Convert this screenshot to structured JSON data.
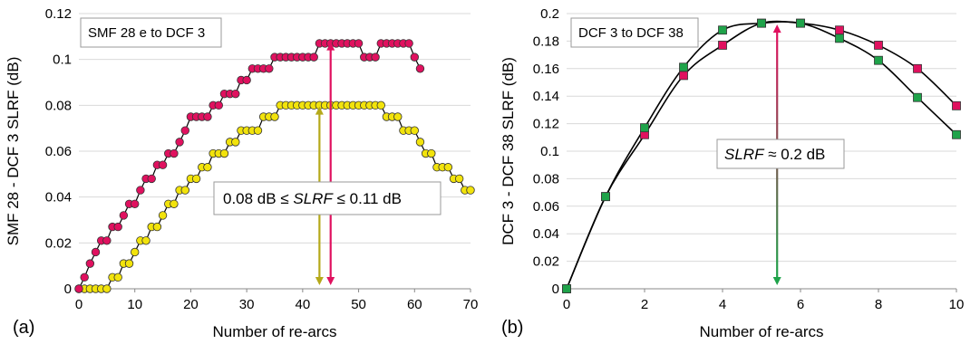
{
  "chart_data": [
    {
      "type": "scatter",
      "panel_label": "(a)",
      "title": "SMF 28 e to DCF 3",
      "xlabel": "Number of re-arcs",
      "ylabel": "SMF 28 - DCF 3 SLRF (dB)",
      "xlim": [
        0,
        70
      ],
      "ylim": [
        0,
        0.12
      ],
      "xticks": [
        "0",
        "10",
        "20",
        "30",
        "40",
        "50",
        "60",
        "70"
      ],
      "yticks": [
        "0",
        "0.02",
        "0.04",
        "0.06",
        "0.08",
        "0.1",
        "0.12"
      ],
      "grid": true,
      "annotation": {
        "text_left": "0.08 dB  ≤ ",
        "text_mid": "SLRF",
        "text_right": " ≤ 0.11 dB",
        "arrow_upper_x": 45,
        "arrow_upper_top": 0.1075,
        "arrow_lower_x": 43,
        "arrow_lower_top": 0.0795
      },
      "colors": {
        "upper": "#e0115f",
        "lower": "#f2e30c",
        "upper_arrow": "#e0115f",
        "lower_arrow": "#b5a91a"
      },
      "series": [
        {
          "name": "",
          "color": "#e0115f",
          "x": [
            0,
            1,
            2,
            3,
            4,
            5,
            6,
            7,
            8,
            9,
            10,
            11,
            12,
            13,
            14,
            15,
            16,
            17,
            18,
            19,
            20,
            21,
            22,
            23,
            24,
            25,
            26,
            27,
            28,
            29,
            30,
            31,
            32,
            33,
            34,
            35,
            36,
            37,
            38,
            39,
            40,
            41,
            42,
            43,
            44,
            45,
            46,
            47,
            48,
            49,
            50,
            51,
            52,
            53,
            54,
            55,
            56,
            57,
            58,
            59,
            60,
            61
          ],
          "y": [
            0,
            0.005,
            0.011,
            0.016,
            0.021,
            0.021,
            0.027,
            0.027,
            0.032,
            0.037,
            0.037,
            0.043,
            0.048,
            0.048,
            0.054,
            0.054,
            0.059,
            0.059,
            0.064,
            0.069,
            0.075,
            0.075,
            0.075,
            0.075,
            0.08,
            0.08,
            0.085,
            0.085,
            0.085,
            0.091,
            0.091,
            0.096,
            0.096,
            0.096,
            0.096,
            0.101,
            0.101,
            0.101,
            0.101,
            0.101,
            0.101,
            0.101,
            0.101,
            0.107,
            0.107,
            0.107,
            0.107,
            0.107,
            0.107,
            0.107,
            0.107,
            0.101,
            0.101,
            0.101,
            0.107,
            0.107,
            0.107,
            0.107,
            0.107,
            0.107,
            0.101,
            0.096
          ]
        },
        {
          "name": "",
          "color": "#f2e30c",
          "x": [
            0,
            1,
            2,
            3,
            4,
            5,
            6,
            7,
            8,
            9,
            10,
            11,
            12,
            13,
            14,
            15,
            16,
            17,
            18,
            19,
            20,
            21,
            22,
            23,
            24,
            25,
            26,
            27,
            28,
            29,
            30,
            31,
            32,
            33,
            34,
            35,
            36,
            37,
            38,
            39,
            40,
            41,
            42,
            43,
            44,
            45,
            46,
            47,
            48,
            49,
            50,
            51,
            52,
            53,
            54,
            55,
            56,
            57,
            58,
            59,
            60,
            61,
            62,
            63,
            64,
            65,
            66,
            67,
            68,
            69,
            70
          ],
          "y": [
            0,
            0,
            0,
            0,
            0,
            0,
            0.005,
            0.005,
            0.011,
            0.011,
            0.016,
            0.021,
            0.021,
            0.027,
            0.027,
            0.032,
            0.037,
            0.037,
            0.043,
            0.043,
            0.048,
            0.048,
            0.053,
            0.053,
            0.059,
            0.059,
            0.059,
            0.064,
            0.064,
            0.069,
            0.069,
            0.069,
            0.069,
            0.075,
            0.075,
            0.075,
            0.08,
            0.08,
            0.08,
            0.08,
            0.08,
            0.08,
            0.08,
            0.08,
            0.08,
            0.08,
            0.08,
            0.08,
            0.08,
            0.08,
            0.08,
            0.08,
            0.08,
            0.08,
            0.08,
            0.075,
            0.075,
            0.075,
            0.069,
            0.069,
            0.069,
            0.064,
            0.059,
            0.059,
            0.053,
            0.053,
            0.053,
            0.048,
            0.048,
            0.043,
            0.043
          ]
        }
      ]
    },
    {
      "type": "line",
      "panel_label": "(b)",
      "title": "DCF 3 to DCF 38",
      "xlabel": "Number of re-arcs",
      "ylabel": "DCF 3 - DCF 38 SLRF (dB)",
      "xlim": [
        0,
        10
      ],
      "ylim": [
        0,
        0.2
      ],
      "xticks": [
        "0",
        "2",
        "4",
        "6",
        "8",
        "10"
      ],
      "yticks": [
        "0",
        "0.02",
        "0.04",
        "0.06",
        "0.08",
        "0.1",
        "0.12",
        "0.14",
        "0.16",
        "0.18",
        "0.2"
      ],
      "grid": true,
      "annotation": {
        "text_mid": "SLRF",
        "text_right": " ≈ 0.2 dB",
        "arrow_x": 5.4,
        "arrow_top": 0.192
      },
      "colors": {
        "pink": "#e0115f",
        "green": "#1fa34a"
      },
      "series": [
        {
          "name": "",
          "color": "#e0115f",
          "x": [
            0,
            1,
            2,
            3,
            4,
            5,
            6,
            7,
            8,
            9,
            10
          ],
          "y": [
            0,
            0.067,
            0.112,
            0.155,
            0.177,
            0.193,
            0.193,
            0.188,
            0.177,
            0.16,
            0.133
          ]
        },
        {
          "name": "",
          "color": "#1fa34a",
          "x": [
            0,
            1,
            2,
            3,
            4,
            5,
            6,
            7,
            8,
            9,
            10
          ],
          "y": [
            0,
            0.067,
            0.117,
            0.161,
            0.188,
            0.193,
            0.193,
            0.182,
            0.166,
            0.139,
            0.112
          ]
        }
      ]
    }
  ]
}
